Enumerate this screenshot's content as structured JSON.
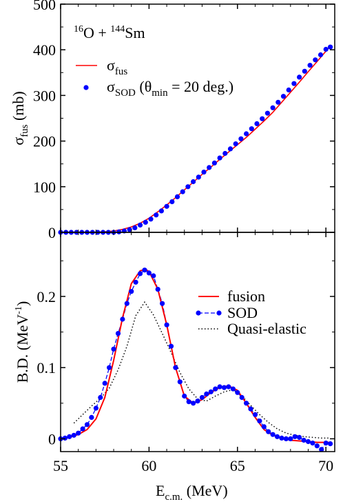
{
  "chart_data": [
    {
      "type": "line",
      "panel": "top",
      "annotation": {
        "base": "O + Sm",
        "sup1": "16",
        "sup2": "144"
      },
      "ylabel": {
        "main": "σ",
        "sub": "fus",
        "rest": " (mb)"
      },
      "ylim": [
        0,
        500
      ],
      "yticks": [
        0,
        100,
        200,
        300,
        400,
        500
      ],
      "xlim": [
        55,
        70.5
      ],
      "legend": {
        "placement": "top-left",
        "entries": [
          {
            "main": "σ",
            "sub": "fus",
            "rest": "",
            "mark": "line"
          },
          {
            "main": "σ",
            "sub": "SOD",
            "rest": " (θ",
            "sub2": "min",
            "rest2": " = 20 deg.)",
            "mark": "dot"
          }
        ]
      },
      "series": [
        {
          "kind": "line",
          "x": [
            55.0,
            57.0,
            57.5,
            58.0,
            58.5,
            59.0,
            59.5,
            60.0,
            60.5,
            61.0,
            61.5,
            62.0,
            62.5,
            63.0,
            63.5,
            64.0,
            64.5,
            65.0,
            65.5,
            66.0,
            66.5,
            67.0,
            67.5,
            68.0,
            68.5,
            69.0,
            69.5,
            70.0,
            70.25
          ],
          "y": [
            0,
            0.4,
            1.2,
            3,
            6.5,
            12,
            20,
            31,
            45,
            60,
            76,
            93,
            110,
            127,
            143,
            160,
            176,
            192,
            208,
            226,
            244,
            263,
            285,
            307,
            329,
            352,
            374,
            397,
            408
          ]
        },
        {
          "kind": "scatter",
          "x": [
            55.0,
            55.3,
            55.6,
            55.9,
            56.2,
            56.5,
            56.8,
            57.1,
            57.4,
            57.7,
            58.0,
            58.3,
            58.6,
            58.9,
            59.2,
            59.5,
            59.8,
            60.1,
            60.4,
            60.7,
            61.0,
            61.3,
            61.6,
            61.9,
            62.2,
            62.5,
            62.8,
            63.1,
            63.4,
            63.7,
            64.0,
            64.3,
            64.6,
            64.9,
            65.2,
            65.5,
            65.8,
            66.1,
            66.4,
            66.7,
            67.0,
            67.3,
            67.6,
            67.9,
            68.2,
            68.5,
            68.8,
            69.1,
            69.4,
            69.7,
            70.0,
            70.25
          ],
          "y": [
            0,
            0,
            0,
            0,
            0,
            0,
            0,
            0,
            0,
            0,
            0,
            1,
            3,
            6,
            10,
            16,
            22,
            29,
            38,
            47,
            57,
            67,
            78,
            89,
            100,
            111,
            121,
            132,
            142,
            152,
            163,
            173,
            183,
            194,
            205,
            216,
            227,
            238,
            249,
            261,
            273,
            285,
            298,
            312,
            326,
            340,
            353,
            366,
            378,
            389,
            401,
            406
          ]
        }
      ]
    },
    {
      "type": "line",
      "panel": "bottom",
      "xlabel": {
        "main": "E",
        "sub": "c.m.",
        "rest": "   (MeV)"
      },
      "ylabel": {
        "main": "B.D. (MeV",
        "sup": "-1",
        "rest": ")"
      },
      "xlim": [
        55,
        70.5
      ],
      "xticks": [
        55,
        60,
        65,
        70
      ],
      "ylim": [
        -0.018,
        0.29
      ],
      "yticks": [
        0,
        0.1,
        0.2
      ],
      "ytick_labels": [
        "0",
        "0.1",
        "0.2"
      ],
      "legend": {
        "placement": "right",
        "entries": [
          {
            "label": "fusion",
            "mark": "line"
          },
          {
            "label": "SOD",
            "mark": "dash-dot"
          },
          {
            "label": "Quasi-elastic",
            "mark": "dotted"
          }
        ]
      },
      "series": [
        {
          "name": "fusion",
          "color": "#ff0000",
          "x": [
            55.0,
            55.5,
            56.0,
            56.5,
            57.0,
            57.5,
            58.0,
            58.5,
            59.0,
            59.5,
            59.8,
            60.0,
            60.5,
            61.0,
            61.5,
            62.0,
            62.5,
            63.0,
            63.5,
            64.0,
            64.3,
            64.6,
            65.0,
            65.5,
            66.0,
            66.5,
            67.0,
            67.5,
            68.0,
            68.5,
            69.0,
            69.5,
            70.0,
            70.25
          ],
          "y": [
            0.0,
            0.002,
            0.006,
            0.013,
            0.028,
            0.058,
            0.11,
            0.17,
            0.218,
            0.236,
            0.238,
            0.235,
            0.21,
            0.16,
            0.1,
            0.06,
            0.05,
            0.055,
            0.065,
            0.072,
            0.074,
            0.073,
            0.068,
            0.05,
            0.03,
            0.013,
            0.005,
            0.001,
            -0.002,
            -0.003,
            -0.004,
            -0.005,
            -0.005,
            -0.005
          ]
        },
        {
          "name": "SOD",
          "color": "#0000ff",
          "x": [
            55.0,
            55.25,
            55.5,
            55.75,
            56.0,
            56.25,
            56.5,
            56.75,
            57.0,
            57.25,
            57.5,
            57.75,
            58.0,
            58.25,
            58.5,
            58.75,
            59.0,
            59.25,
            59.5,
            59.75,
            60.0,
            60.25,
            60.5,
            60.75,
            61.0,
            61.25,
            61.5,
            61.75,
            62.0,
            62.25,
            62.5,
            62.75,
            63.0,
            63.25,
            63.5,
            63.75,
            64.0,
            64.25,
            64.5,
            64.75,
            65.0,
            65.25,
            65.5,
            65.75,
            66.0,
            66.25,
            66.5,
            66.75,
            67.0,
            67.25,
            67.5,
            67.75,
            68.0,
            68.25,
            68.5,
            68.75,
            69.0,
            69.25,
            69.5,
            69.75,
            70.0,
            70.25
          ],
          "y": [
            0.0,
            0.001,
            0.003,
            0.005,
            0.008,
            0.014,
            0.02,
            0.03,
            0.043,
            0.058,
            0.078,
            0.1,
            0.126,
            0.148,
            0.168,
            0.19,
            0.207,
            0.22,
            0.232,
            0.237,
            0.233,
            0.229,
            0.21,
            0.19,
            0.16,
            0.13,
            0.1,
            0.08,
            0.06,
            0.052,
            0.05,
            0.053,
            0.058,
            0.063,
            0.066,
            0.07,
            0.073,
            0.072,
            0.073,
            0.07,
            0.065,
            0.058,
            0.05,
            0.042,
            0.034,
            0.025,
            0.017,
            0.01,
            0.006,
            0.003,
            0.001,
            0.0,
            0.0,
            0.003,
            0.002,
            -0.002,
            -0.004,
            -0.006,
            -0.01,
            -0.015,
            -0.006,
            -0.007
          ]
        },
        {
          "name": "Quasi-elastic",
          "color": "#000000",
          "x": [
            55.75,
            56.25,
            56.75,
            57.25,
            57.75,
            58.25,
            58.75,
            59.25,
            59.75,
            60.25,
            60.75,
            61.25,
            61.75,
            62.25,
            62.75,
            63.25,
            63.75,
            64.25,
            64.75,
            65.25,
            65.75,
            66.25,
            66.75,
            67.25,
            67.75,
            68.25,
            68.75,
            69.25,
            69.75,
            70.25
          ],
          "y": [
            0.022,
            0.034,
            0.046,
            0.057,
            0.071,
            0.097,
            0.13,
            0.173,
            0.192,
            0.174,
            0.148,
            0.121,
            0.093,
            0.07,
            0.056,
            0.053,
            0.06,
            0.066,
            0.069,
            0.06,
            0.047,
            0.034,
            0.023,
            0.014,
            0.008,
            0.005,
            0.003,
            0.002,
            0.001,
            0.001
          ]
        }
      ]
    }
  ]
}
